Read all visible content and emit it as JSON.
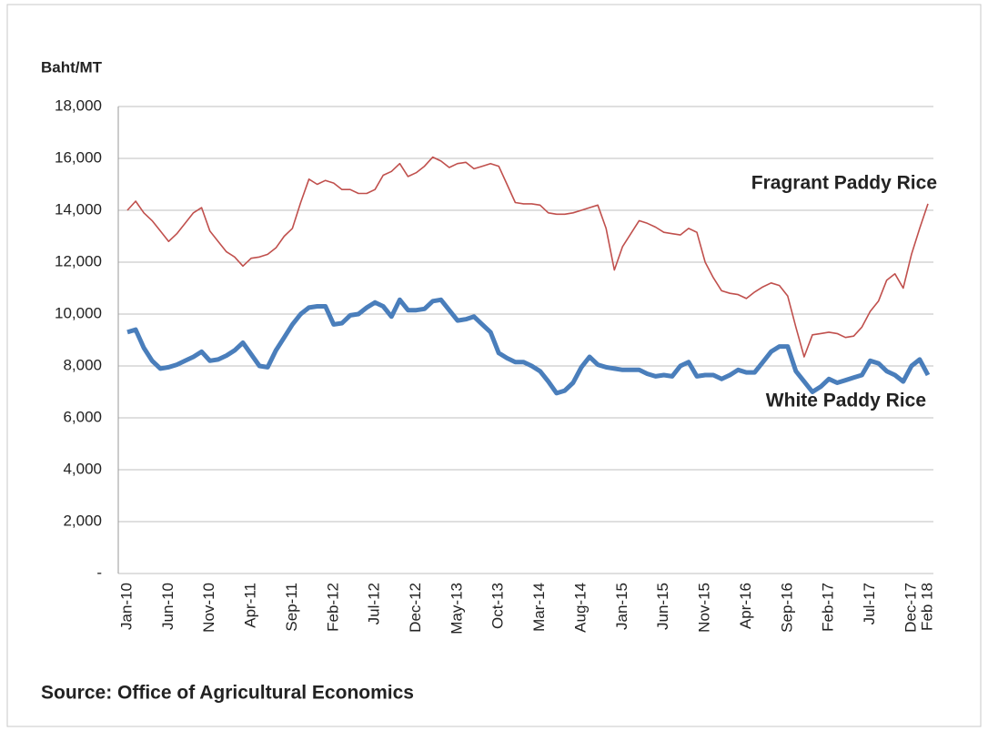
{
  "chart_data": {
    "type": "line",
    "y_label": "Baht/MT",
    "source": "Source: Office of Agricultural Economics",
    "categories": [
      "Jan-10",
      null,
      null,
      null,
      null,
      "Jun-10",
      null,
      null,
      null,
      null,
      "Nov-10",
      null,
      null,
      null,
      null,
      "Apr-11",
      null,
      null,
      null,
      null,
      "Sep-11",
      null,
      null,
      null,
      null,
      "Feb-12",
      null,
      null,
      null,
      null,
      "Jul-12",
      null,
      null,
      null,
      null,
      "Dec-12",
      null,
      null,
      null,
      null,
      "May-13",
      null,
      null,
      null,
      null,
      "Oct-13",
      null,
      null,
      null,
      null,
      "Mar-14",
      null,
      null,
      null,
      null,
      "Aug-14",
      null,
      null,
      null,
      null,
      "Jan-15",
      null,
      null,
      null,
      null,
      "Jun-15",
      null,
      null,
      null,
      null,
      "Nov-15",
      null,
      null,
      null,
      null,
      "Apr-16",
      null,
      null,
      null,
      null,
      "Sep-16",
      null,
      null,
      null,
      null,
      "Feb-17",
      null,
      null,
      null,
      null,
      "Jul-17",
      null,
      null,
      null,
      null,
      "Dec-17",
      null,
      "Feb 18"
    ],
    "series": [
      {
        "name": "Fragrant Paddy Rice",
        "color": "#c0504d",
        "values": [
          14000,
          14350,
          13900,
          13600,
          13200,
          12800,
          13100,
          13500,
          13900,
          14100,
          13200,
          12800,
          12400,
          12200,
          11850,
          12150,
          12200,
          12300,
          12550,
          13000,
          13300,
          14300,
          15200,
          15000,
          15150,
          15050,
          14800,
          14800,
          14650,
          14650,
          14800,
          15350,
          15500,
          15800,
          15300,
          15450,
          15700,
          16050,
          15900,
          15650,
          15800,
          15850,
          15600,
          15700,
          15800,
          15700,
          15000,
          14300,
          14250,
          14250,
          14200,
          13900,
          13850,
          13850,
          13900,
          14000,
          14100,
          14200,
          13300,
          11700,
          12600,
          13100,
          13600,
          13500,
          13350,
          13150,
          13100,
          13050,
          13300,
          13150,
          12000,
          11400,
          10900,
          10800,
          10750,
          10600,
          10850,
          11050,
          11200,
          11100,
          10700,
          9500,
          8350,
          9200,
          9250,
          9300,
          9250,
          9100,
          9150,
          9500,
          10100,
          10500,
          11300,
          11550,
          11000,
          12300,
          13300,
          14250
        ]
      },
      {
        "name": "White Paddy Rice",
        "color": "#4a7ebb",
        "values": [
          9300,
          9400,
          8700,
          8200,
          7900,
          7950,
          8050,
          8200,
          8350,
          8550,
          8200,
          8250,
          8400,
          8600,
          8900,
          8450,
          8000,
          7950,
          8600,
          9100,
          9600,
          10000,
          10250,
          10300,
          10300,
          9600,
          9650,
          9950,
          10000,
          10250,
          10450,
          10300,
          9900,
          10550,
          10150,
          10150,
          10200,
          10500,
          10550,
          10150,
          9750,
          9800,
          9900,
          9600,
          9300,
          8500,
          8300,
          8150,
          8150,
          8000,
          7800,
          7400,
          6950,
          7050,
          7350,
          7950,
          8350,
          8050,
          7950,
          7900,
          7850,
          7850,
          7850,
          7700,
          7600,
          7650,
          7600,
          8000,
          8150,
          7600,
          7650,
          7650,
          7500,
          7650,
          7850,
          7750,
          7750,
          8150,
          8550,
          8750,
          8750,
          7800,
          7400,
          7000,
          7200,
          7500,
          7350,
          7450,
          7550,
          7650,
          8200,
          8100,
          7800,
          7650,
          7400,
          8000,
          8250,
          7650
        ]
      }
    ],
    "ylim": [
      0,
      18000
    ],
    "yticks": [
      {
        "value": 0,
        "label": "-"
      },
      {
        "value": 2000,
        "label": "2,000"
      },
      {
        "value": 4000,
        "label": "4,000"
      },
      {
        "value": 6000,
        "label": "6,000"
      },
      {
        "value": 8000,
        "label": "8,000"
      },
      {
        "value": 10000,
        "label": "10,000"
      },
      {
        "value": 12000,
        "label": "12,000"
      },
      {
        "value": 14000,
        "label": "14,000"
      },
      {
        "value": 16000,
        "label": "16,000"
      },
      {
        "value": 18000,
        "label": "18,000"
      }
    ],
    "grid": true
  }
}
